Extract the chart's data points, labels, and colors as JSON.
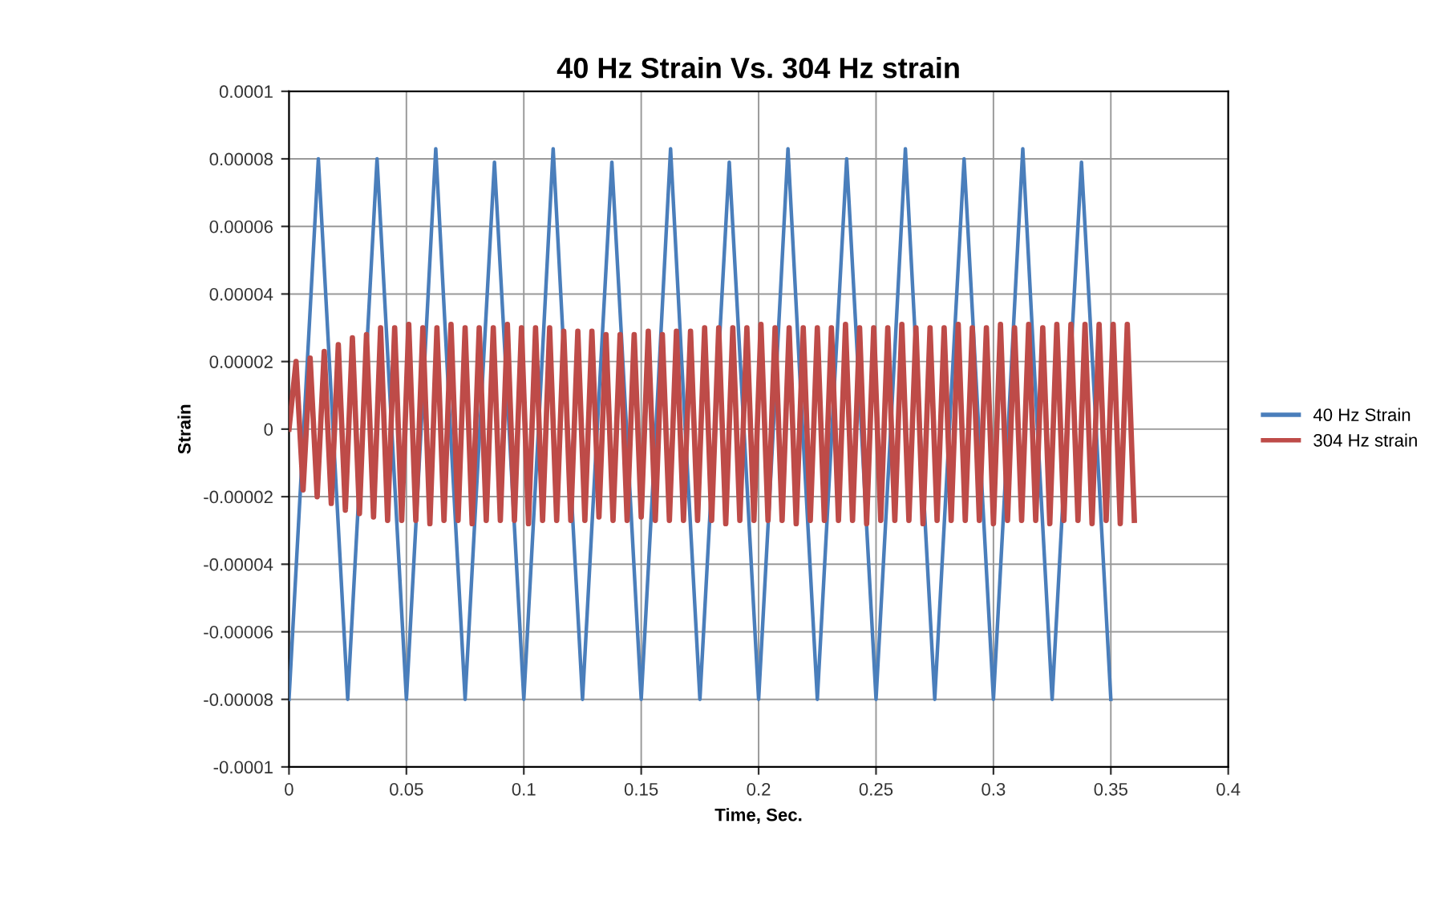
{
  "chart_data": {
    "type": "line",
    "title": "40 Hz Strain Vs. 304 Hz strain",
    "xlabel": "Time, Sec.",
    "ylabel": "Strain",
    "xlim": [
      0,
      0.4
    ],
    "xticks": [
      0,
      0.05,
      0.1,
      0.15,
      0.2,
      0.25,
      0.3,
      0.35,
      0.4
    ],
    "ylim": [
      -0.0001,
      0.0001
    ],
    "yticks": [
      {
        "value": -0.0001,
        "label": "-0.0001"
      },
      {
        "value": -8e-05,
        "label": "-0.00008"
      },
      {
        "value": -6e-05,
        "label": "-0.00006"
      },
      {
        "value": -4e-05,
        "label": "-0.00004"
      },
      {
        "value": -2e-05,
        "label": "-0.00002"
      },
      0,
      {
        "value": 2e-05,
        "label": "0.00002"
      },
      {
        "value": 4e-05,
        "label": "0.00004"
      },
      {
        "value": 6e-05,
        "label": "0.00006"
      },
      {
        "value": 8e-05,
        "label": "0.00008"
      },
      {
        "value": 0.0001,
        "label": "0.0001"
      }
    ],
    "grid": true,
    "legend": "right",
    "marker": "none",
    "line_style": "solid",
    "series": [
      {
        "name": "40 Hz Strain",
        "color": "#4a7ebb",
        "x": [
          0,
          0.00625,
          0.0125,
          0.01875,
          0.025,
          0.03125,
          0.0375,
          0.04375,
          0.05,
          0.05625,
          0.0625,
          0.06875,
          0.075,
          0.08125,
          0.0875,
          0.09375,
          0.1,
          0.10625,
          0.1125,
          0.11875,
          0.125,
          0.13125,
          0.1375,
          0.14375,
          0.15,
          0.15625,
          0.1625,
          0.16875,
          0.175,
          0.18125,
          0.1875,
          0.19375,
          0.2,
          0.20625,
          0.2125,
          0.21875,
          0.225,
          0.23125,
          0.2375,
          0.24375,
          0.25,
          0.25625,
          0.2625,
          0.26875,
          0.275,
          0.28125,
          0.2875,
          0.29375,
          0.3,
          0.30625,
          0.3125,
          0.31875,
          0.325,
          0.33125,
          0.3375,
          0.34375,
          0.35
        ],
        "values": [
          -8e-05,
          0,
          8e-05,
          0,
          -8e-05,
          0,
          8e-05,
          0,
          -8e-05,
          0,
          8.3e-05,
          0,
          -8e-05,
          0,
          7.9e-05,
          0,
          -8e-05,
          0,
          8.3e-05,
          0,
          -8e-05,
          0,
          7.9e-05,
          0,
          -8e-05,
          0,
          8.3e-05,
          0,
          -8e-05,
          0,
          7.9e-05,
          0,
          -8e-05,
          0,
          8.3e-05,
          0,
          -8e-05,
          0,
          8e-05,
          0,
          -8e-05,
          0,
          8.3e-05,
          0,
          -8e-05,
          0,
          8e-05,
          0,
          -8e-05,
          0,
          8.3e-05,
          0,
          -8e-05,
          0,
          7.9e-05,
          0,
          -8e-05
        ]
      },
      {
        "name": "304 Hz strain",
        "color": "#be4b48",
        "x": [
          0,
          0.003,
          0.006,
          0.009,
          0.012,
          0.015,
          0.018,
          0.021,
          0.024,
          0.027,
          0.03,
          0.033,
          0.036,
          0.039,
          0.042,
          0.045,
          0.048,
          0.051,
          0.054,
          0.057,
          0.06,
          0.063,
          0.066,
          0.069,
          0.072,
          0.075,
          0.078,
          0.081,
          0.084,
          0.087,
          0.09,
          0.093,
          0.096,
          0.099,
          0.102,
          0.105,
          0.108,
          0.111,
          0.114,
          0.117,
          0.12,
          0.123,
          0.126,
          0.129,
          0.132,
          0.135,
          0.138,
          0.141,
          0.144,
          0.147,
          0.15,
          0.153,
          0.156,
          0.159,
          0.162,
          0.165,
          0.168,
          0.171,
          0.174,
          0.177,
          0.18,
          0.183,
          0.186,
          0.189,
          0.192,
          0.195,
          0.198,
          0.201,
          0.204,
          0.207,
          0.21,
          0.213,
          0.216,
          0.219,
          0.222,
          0.225,
          0.228,
          0.231,
          0.234,
          0.237,
          0.24,
          0.243,
          0.246,
          0.249,
          0.252,
          0.255,
          0.258,
          0.261,
          0.264,
          0.267,
          0.27,
          0.273,
          0.276,
          0.279,
          0.282,
          0.285,
          0.288,
          0.291,
          0.294,
          0.297,
          0.3,
          0.303,
          0.306,
          0.309,
          0.312,
          0.315,
          0.318,
          0.321,
          0.324,
          0.327,
          0.33,
          0.333,
          0.336,
          0.339,
          0.342,
          0.345,
          0.348,
          0.351,
          0.354,
          0.357,
          0.36
        ],
        "values": [
          0,
          2e-05,
          -1.8e-05,
          2.1e-05,
          -2e-05,
          2.3e-05,
          -2.2e-05,
          2.5e-05,
          -2.4e-05,
          2.7e-05,
          -2.5e-05,
          2.8e-05,
          -2.6e-05,
          3e-05,
          -2.7e-05,
          3e-05,
          -2.7e-05,
          3.1e-05,
          -2.7e-05,
          3e-05,
          -2.8e-05,
          3e-05,
          -2.7e-05,
          3.1e-05,
          -2.7e-05,
          3e-05,
          -2.8e-05,
          3e-05,
          -2.7e-05,
          3e-05,
          -2.7e-05,
          3.1e-05,
          -2.7e-05,
          3e-05,
          -2.8e-05,
          3e-05,
          -2.7e-05,
          3e-05,
          -2.7e-05,
          2.9e-05,
          -2.7e-05,
          2.9e-05,
          -2.7e-05,
          2.9e-05,
          -2.6e-05,
          2.8e-05,
          -2.7e-05,
          2.8e-05,
          -2.7e-05,
          2.8e-05,
          -2.6e-05,
          2.9e-05,
          -2.7e-05,
          2.8e-05,
          -2.7e-05,
          2.9e-05,
          -2.7e-05,
          2.9e-05,
          -2.7e-05,
          3e-05,
          -2.7e-05,
          3e-05,
          -2.8e-05,
          3e-05,
          -2.7e-05,
          3e-05,
          -2.7e-05,
          3.1e-05,
          -2.7e-05,
          3e-05,
          -2.7e-05,
          3e-05,
          -2.8e-05,
          3e-05,
          -2.7e-05,
          3e-05,
          -2.7e-05,
          3e-05,
          -2.7e-05,
          3.1e-05,
          -2.7e-05,
          3e-05,
          -2.8e-05,
          3e-05,
          -2.7e-05,
          3e-05,
          -2.7e-05,
          3.1e-05,
          -2.7e-05,
          3e-05,
          -2.8e-05,
          3e-05,
          -2.7e-05,
          3e-05,
          -2.7e-05,
          3.1e-05,
          -2.7e-05,
          3e-05,
          -2.7e-05,
          3e-05,
          -2.8e-05,
          3.1e-05,
          -2.7e-05,
          3e-05,
          -2.7e-05,
          3.1e-05,
          -2.7e-05,
          3e-05,
          -2.8e-05,
          3.1e-05,
          -2.7e-05,
          3.1e-05,
          -2.7e-05,
          3.1e-05,
          -2.8e-05,
          3.1e-05,
          -2.7e-05,
          3.1e-05,
          -2.8e-05,
          3.1e-05,
          -2.7e-05
        ]
      }
    ]
  }
}
